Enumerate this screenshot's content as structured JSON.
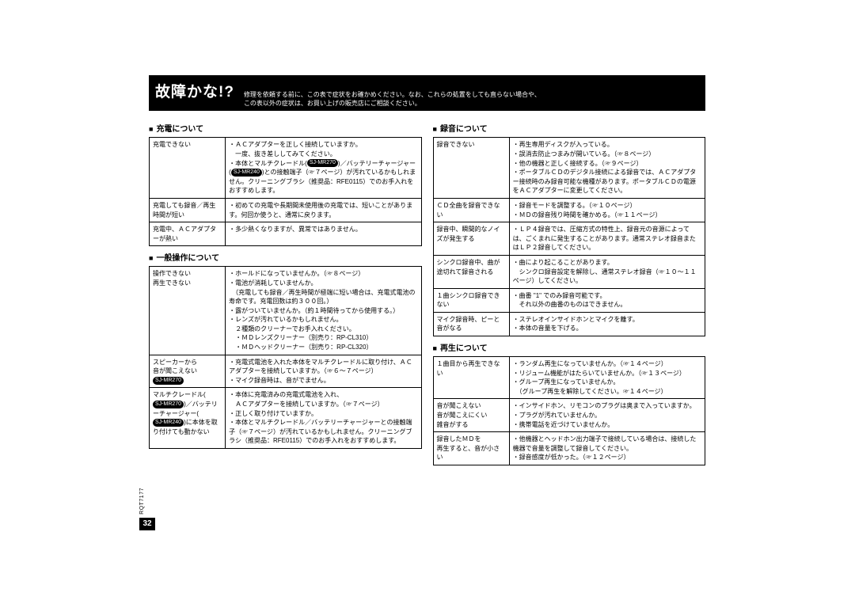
{
  "header": {
    "title": "故障かな!?",
    "subtitle_line1": "修理を依頼する前に、この表で症状をお確かめください。なお、これらの処置をしても直らない場合や、",
    "subtitle_line2": "この表以外の症状は、お買い上げの販売店にご相談ください。"
  },
  "page_number": "32",
  "side_label": "RQT7177",
  "model_tags": {
    "mr270": "SJ-MR270",
    "mr240": "SJ-MR240"
  },
  "left_sections": [
    {
      "title": "充電について",
      "rows": [
        {
          "symptom": "充電できない",
          "cause_html": "・ＡＣアダプターを正しく接続していますか。<br>　一度、抜き差ししてみてください。<br>・本体とマルチクレードル(<span class='model-tag'>SJ-MR270</span>)／バッテリーチャージャー(<span class='model-tag'>SJ-MR240</span>)との接触端子（☞７ページ）が汚れているかもしれません。クリーニングブラシ（推奨品：RFE0115）でのお手入れをおすすめします。"
        },
        {
          "symptom": "充電しても録音／再生時間が短い",
          "cause_html": "・初めての充電や長期間未使用後の充電では、短いことがあります。何回か使うと、通常に戻ります。"
        },
        {
          "symptom": "充電中、ＡＣアダプターが熱い",
          "cause_html": "・多少熱くなりますが、異常ではありません。"
        }
      ]
    },
    {
      "title": "一般操作について",
      "rows": [
        {
          "symptom": "操作できない<br>再生できない",
          "cause_html": "・ホールドになっていませんか。（☞８ページ）<br>・電池が消耗していませんか。<br>　（充電しても録音／再生時間が極端に短い場合は、充電式電池の寿命です。充電回数は約３００回。）<br>・露がついていませんか。（約１時間待ってから使用する。）<br>・レンズが汚れているかもしれません。<br>　２種類のクリーナーでお手入れください。<br>　・ＭＤレンズクリーナー（別売り：RP-CL310）<br>　・ＭＤヘッドクリーナー（別売り：RP-CL320）"
        },
        {
          "symptom_html": "スピーカーから<br>音が聞こえない<br><span class='model-tag'>SJ-MR270</span>",
          "cause_html": "・充電式電池を入れた本体をマルチクレードルに取り付け、ＡＣアダプターを接続していますか。（☞６〜７ページ）<br>・マイク録音時は、音がでません。"
        },
        {
          "symptom_html": "マルチクレードル(<span class='model-tag'>SJ-MR270</span>)／バッテリーチャージャー(<span class='model-tag'>SJ-MR240</span>)に本体を取り付けても動かない",
          "cause_html": "・本体に充電済みの充電式電池を入れ、<br>　ＡＣアダプターを接続していますか。（☞７ページ）<br>・正しく取り付けていますか。<br>・本体とマルチクレードル／バッテリーチャージャーとの接触端子（☞７ページ）が汚れているかもしれません。クリーニングブラシ（推奨品：RFE0115）でのお手入れをおすすめします。"
        }
      ]
    }
  ],
  "right_sections": [
    {
      "title": "録音について",
      "rows": [
        {
          "symptom": "録音できない",
          "cause_html": "・再生専用ディスクが入っている。<br>・誤消去防止つまみが開いている。（☞８ページ）<br>・他の機器と正しく接続する。（☞９ページ）<br>・ポータブルＣＤのデジタル接続による録音では、ＡＣアダプター接続時のみ録音可能な機種があります。ポータブルＣＤの電源をＡＣアダプターに変更してください。"
        },
        {
          "symptom": "ＣＤ全曲を録音できない",
          "cause_html": "・録音モードを調整する。（☞１０ページ）<br>・ＭＤの録音残り時間を確かめる。（☞１１ページ）"
        },
        {
          "symptom": "録音中、瞬間的なノイズが発生する",
          "cause_html": "・ＬＰ４録音では、圧縮方式の特性上、録音元の音源によっては、ごくまれに発生することがあります。通常ステレオ録音またはＬＰ２録音してください。"
        },
        {
          "symptom": "シンクロ録音中、曲が途切れて録音される",
          "cause_html": "・曲により起こることがあります。<br>　シンクロ録音設定を解除し、通常ステレオ録音（☞１０〜１１ページ）してください。"
        },
        {
          "symptom": "１曲シンクロ録音できない",
          "cause_html": "・曲番 \"1\" でのみ録音可能です。<br>　それ以外の曲番のものはできません。"
        },
        {
          "symptom": "マイク録音時、ピーと音がなる",
          "cause_html": "・ステレオインサイドホンとマイクを離す。<br>・本体の音量を下げる。"
        }
      ]
    },
    {
      "title": "再生について",
      "rows": [
        {
          "symptom": "１曲目から再生できない",
          "cause_html": "・ランダム再生になっていませんか。（☞１４ページ）<br>・リジューム機能がはたらいていませんか。（☞１３ページ）<br>・グループ再生になっていませんか。<br>　（グループ再生を解除してください。☞１４ページ）"
        },
        {
          "symptom": "音が聞こえない<br>音が聞こえにくい<br>雑音がする",
          "cause_html": "・インサイドホン、リモコンのプラグは奥まで入っていますか。<br>・プラグが汚れていませんか。<br>・携帯電話を近づけていませんか。"
        },
        {
          "symptom": "録音したＭＤを<br>再生すると、音が小さい",
          "cause_html": "・他機器とヘッドホン出力端子で接続している場合は、接続した機器で音量を調整して録音してください。<br>・録音感度が低かった。（☞１２ページ）"
        }
      ]
    }
  ]
}
